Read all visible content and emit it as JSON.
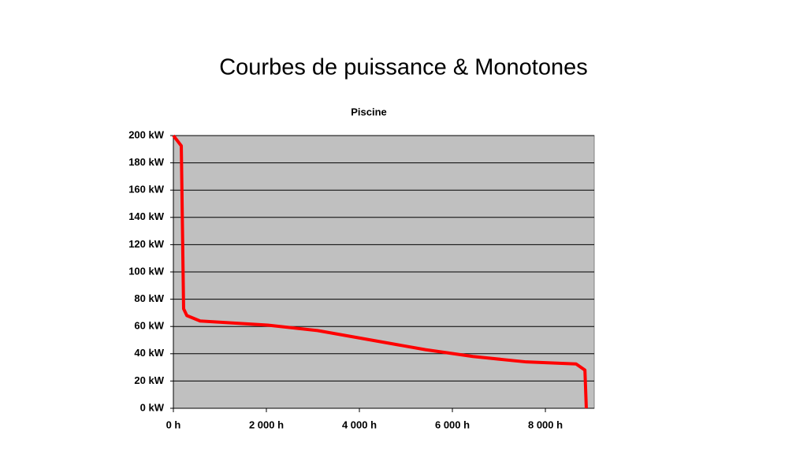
{
  "slide_title": "Courbes de puissance & Monotones",
  "chart_data": {
    "type": "line",
    "title": "Piscine",
    "x": [
      0,
      170,
      220,
      290,
      575,
      2030,
      3100,
      5420,
      6440,
      7590,
      8660,
      8850,
      8880
    ],
    "values": [
      200,
      192.5,
      73,
      68,
      64,
      61,
      57,
      43,
      38,
      34,
      32.5,
      28,
      0
    ],
    "color": "#ff0000",
    "xlim": [
      0,
      9050
    ],
    "xticks": [
      {
        "value": 0,
        "label": "0 h"
      },
      {
        "value": 2000,
        "label": "2 000 h"
      },
      {
        "value": 4000,
        "label": "4 000 h"
      },
      {
        "value": 6000,
        "label": "6 000 h"
      },
      {
        "value": 8000,
        "label": "8 000 h"
      }
    ],
    "ylim": [
      0,
      200
    ],
    "yticks": [
      {
        "value": 0,
        "label": "0 kW"
      },
      {
        "value": 20,
        "label": "20 kW"
      },
      {
        "value": 40,
        "label": "40 kW"
      },
      {
        "value": 60,
        "label": "60 kW"
      },
      {
        "value": 80,
        "label": "80 kW"
      },
      {
        "value": 100,
        "label": "100 kW"
      },
      {
        "value": 120,
        "label": "120 kW"
      },
      {
        "value": 140,
        "label": "140 kW"
      },
      {
        "value": 160,
        "label": "160 kW"
      },
      {
        "value": 180,
        "label": "180 kW"
      },
      {
        "value": 200,
        "label": "200 kW"
      }
    ],
    "grid": true,
    "plot_background": "#c0c0c0"
  }
}
